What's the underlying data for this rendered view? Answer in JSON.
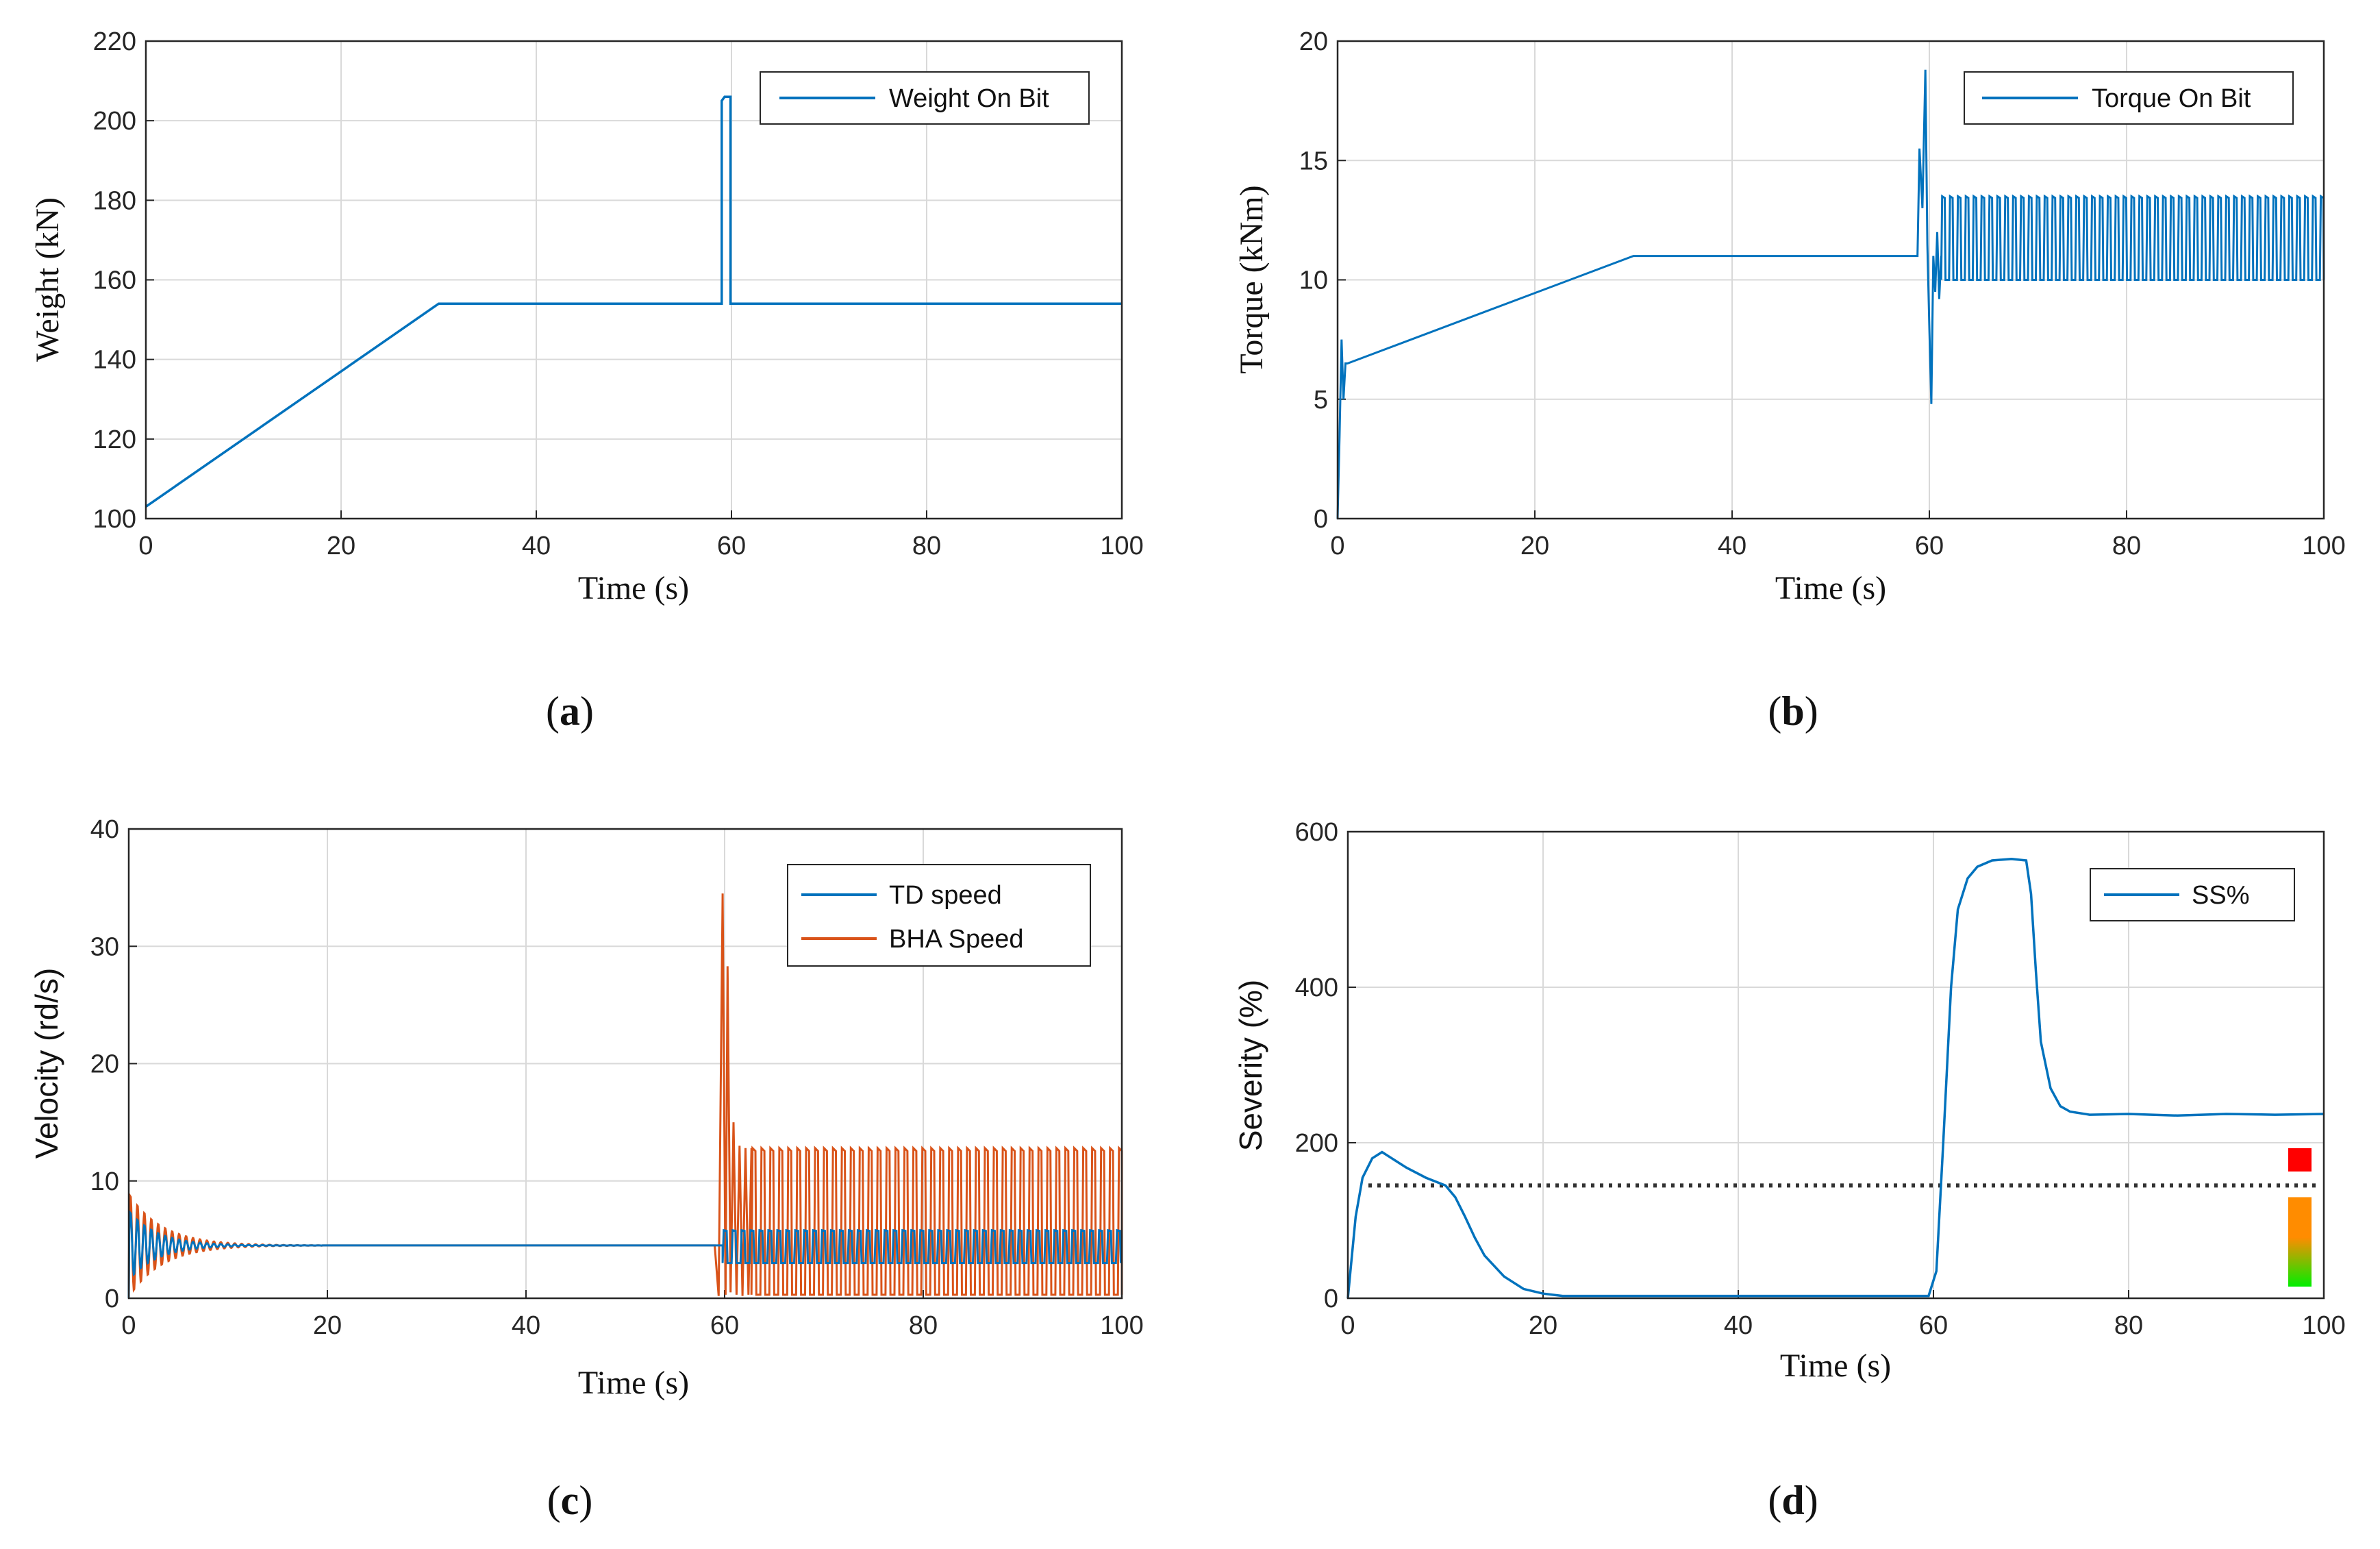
{
  "figure": {
    "panels": [
      {
        "id": "a",
        "caption": "(a)",
        "letter": "a"
      },
      {
        "id": "b",
        "caption": "(b)",
        "letter": "b"
      },
      {
        "id": "c",
        "caption": "(c)",
        "letter": "c"
      },
      {
        "id": "d",
        "caption": "(d)",
        "letter": "d"
      }
    ]
  },
  "colors": {
    "blue": "#0072BD",
    "orange": "#D95319",
    "dotted": "#333333",
    "red": "#ff0000",
    "orange_bar": "#ff8c00",
    "green_bar": "#00ee00"
  },
  "chart_data": [
    {
      "panel": "a",
      "type": "line",
      "title": "",
      "xlabel": "Time (s)",
      "ylabel": "Weight (kN)",
      "xlim": [
        0,
        100
      ],
      "ylim": [
        100,
        220
      ],
      "xticks": [
        0,
        20,
        40,
        60,
        80,
        100
      ],
      "yticks": [
        100,
        120,
        140,
        160,
        180,
        200,
        220
      ],
      "grid": true,
      "legend_position": "top-right",
      "series": [
        {
          "name": "Weight On Bit",
          "color": "#0072BD",
          "x": [
            0,
            30,
            59,
            59,
            59.3,
            59.5,
            59.7,
            59.9,
            59.9,
            100
          ],
          "y": [
            103,
            154,
            154,
            205,
            206,
            206,
            206,
            206,
            154,
            154
          ]
        }
      ]
    },
    {
      "panel": "b",
      "type": "line",
      "title": "",
      "xlabel": "Time (s)",
      "ylabel": "Torque (kNm)",
      "xlim": [
        0,
        100
      ],
      "ylim": [
        0,
        20
      ],
      "xticks": [
        0,
        20,
        40,
        60,
        80,
        100
      ],
      "yticks": [
        0,
        5,
        10,
        15,
        20
      ],
      "grid": true,
      "legend_position": "top-right",
      "series": [
        {
          "name": "Torque On Bit",
          "color": "#0072BD",
          "x": [
            0,
            0.2,
            0.4,
            0.6,
            0.8,
            1.0,
            30,
            58.8,
            59.0,
            59.3,
            59.6,
            59.8,
            60.0,
            60.2,
            60.4,
            60.6,
            60.8,
            61.0,
            61.2
          ],
          "y": [
            0,
            3.5,
            7.5,
            5,
            6.5,
            6.5,
            11,
            11,
            15.5,
            13,
            18.8,
            11.5,
            8,
            4.8,
            11,
            9.5,
            12,
            9.2,
            11
          ],
          "oscillation": {
            "x_start": 61.2,
            "x_end": 100,
            "period": 0.8,
            "high": 13.5,
            "low": 10.0
          }
        }
      ]
    },
    {
      "panel": "c",
      "type": "line",
      "title": "",
      "xlabel": "Time (s)",
      "ylabel": "Velocity (rd/s)",
      "xlim": [
        0,
        100
      ],
      "ylim": [
        0,
        40
      ],
      "xticks": [
        0,
        20,
        40,
        60,
        80,
        100
      ],
      "yticks": [
        0,
        10,
        20,
        30,
        40
      ],
      "grid": true,
      "legend_position": "top-right",
      "series": [
        {
          "name": "TD speed",
          "color": "#0072BD",
          "segments": [
            {
              "type": "damped",
              "x_start": 0,
              "x_end": 19.5,
              "base": 4.5,
              "amp": 3,
              "decay": 0.35,
              "period": 0.7,
              "start": 0
            },
            {
              "type": "flat",
              "x_start": 19.5,
              "x_end": 59.8,
              "value": 4.5
            },
            {
              "type": "osc",
              "x_start": 59.8,
              "x_end": 100,
              "period": 0.9,
              "high": 5.8,
              "low": 3.0
            }
          ]
        },
        {
          "name": "BHA Speed",
          "color": "#D95319",
          "segments": [
            {
              "type": "damped",
              "x_start": 0,
              "x_end": 19.5,
              "base": 4.5,
              "amp": 4.5,
              "decay": 0.3,
              "period": 0.7,
              "start": 0
            },
            {
              "type": "flat",
              "x_start": 19.5,
              "x_end": 59.0,
              "value": 4.5
            },
            {
              "type": "points",
              "x": [
                59.0,
                59.4,
                59.8,
                60.1,
                60.3,
                60.6,
                60.9,
                61.2,
                61.5,
                61.8,
                62.1,
                62.4,
                62.7
              ],
              "y": [
                4.5,
                0.2,
                34.5,
                0.3,
                28.3,
                0.5,
                15.0,
                0.3,
                13.0,
                0.2,
                12.8,
                0.3,
                12.8
              ]
            },
            {
              "type": "osc",
              "x_start": 62.7,
              "x_end": 100,
              "period": 0.9,
              "high": 12.8,
              "low": 0.3
            }
          ]
        }
      ]
    },
    {
      "panel": "d",
      "type": "line",
      "title": "",
      "xlabel": "Time (s)",
      "ylabel": "Severity (%)",
      "xlim": [
        0,
        100
      ],
      "ylim": [
        0,
        600
      ],
      "xticks": [
        0,
        20,
        40,
        60,
        80,
        100
      ],
      "yticks": [
        0,
        200,
        400,
        600
      ],
      "grid": true,
      "legend_position": "top-right",
      "threshold": {
        "y": 145,
        "style": "dotted"
      },
      "severity_indicators": [
        {
          "label": "red",
          "y_from": 163,
          "y_to": 193
        },
        {
          "label": "gradient",
          "y_from": 15,
          "y_to": 130
        }
      ],
      "series": [
        {
          "name": "SS%",
          "color": "#0072BD",
          "x": [
            0,
            0.3,
            0.8,
            1.5,
            2.5,
            3.5,
            4.5,
            6,
            8,
            10,
            11,
            12,
            13,
            14,
            16,
            18,
            20,
            22,
            30,
            40,
            50,
            59.5,
            60.3,
            61,
            61.8,
            62.5,
            63.5,
            64.5,
            66,
            68,
            69.5,
            70,
            70.5,
            71,
            72,
            73,
            74,
            76,
            80,
            85,
            90,
            95,
            100
          ],
          "y": [
            0,
            40,
            105,
            155,
            180,
            188,
            180,
            168,
            155,
            145,
            130,
            105,
            78,
            55,
            28,
            12,
            6,
            3,
            3,
            3,
            3,
            3,
            35,
            200,
            400,
            500,
            540,
            555,
            563,
            565,
            563,
            520,
            420,
            330,
            270,
            247,
            240,
            236,
            237,
            235,
            237,
            236,
            237
          ]
        }
      ]
    }
  ]
}
